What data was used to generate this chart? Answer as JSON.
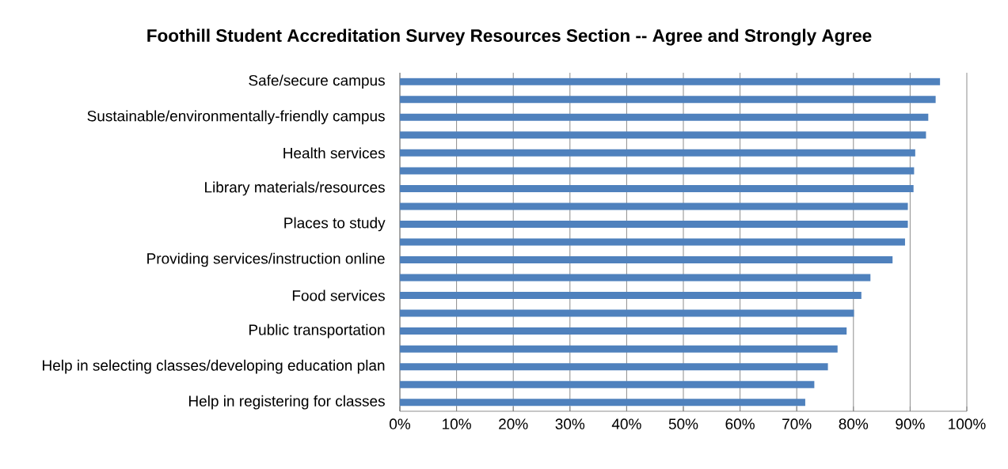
{
  "chart_data": {
    "type": "bar",
    "orientation": "horizontal",
    "title": "Foothill Student Accreditation Survey Resources Section  -- Agree and Strongly Agree",
    "categories": [
      "Safe/secure campus",
      null,
      "Sustainable/environmentally-friendly campus",
      null,
      "Health services",
      null,
      "Library materials/resources",
      null,
      "Places to study",
      null,
      "Providing services/instruction online",
      null,
      "Food services",
      null,
      "Public transportation",
      null,
      "Help in selecting classes/developing education plan",
      null,
      "Help in registering for classes"
    ],
    "values": [
      95.3,
      94.5,
      93.2,
      92.8,
      90.9,
      90.7,
      90.6,
      89.6,
      89.6,
      89.1,
      86.9,
      83.0,
      81.4,
      80.1,
      78.8,
      77.2,
      75.5,
      73.1,
      71.5
    ],
    "color": "#4f81bd",
    "xlim": [
      0,
      100
    ],
    "xticks": [
      {
        "value": 0,
        "label": "0%"
      },
      {
        "value": 10,
        "label": "10%"
      },
      {
        "value": 20,
        "label": "20%"
      },
      {
        "value": 30,
        "label": "30%"
      },
      {
        "value": 40,
        "label": "40%"
      },
      {
        "value": 50,
        "label": "50%"
      },
      {
        "value": 60,
        "label": "60%"
      },
      {
        "value": 70,
        "label": "70%"
      },
      {
        "value": 80,
        "label": "80%"
      },
      {
        "value": 90,
        "label": "90%"
      },
      {
        "value": 100,
        "label": "100%"
      }
    ],
    "grid": "x"
  }
}
